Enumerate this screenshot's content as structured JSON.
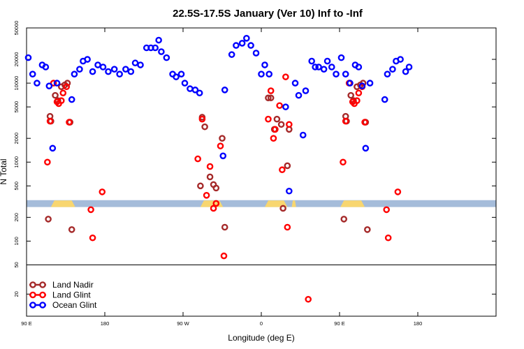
{
  "chart_data": {
    "type": "scatter",
    "title": "22.5S-17.5S January (Ver 10)   Inf to -Inf",
    "xlabel": "Longitude (deg E)",
    "ylabel": "N Total",
    "y_scale": "log",
    "x_range": [
      90,
      630
    ],
    "y_range": [
      10,
      50000
    ],
    "split_value": 50,
    "x_ticks": [
      {
        "value": 90,
        "label": "90 E"
      },
      {
        "value": 180,
        "label": "180"
      },
      {
        "value": 270,
        "label": "90 W"
      },
      {
        "value": 360,
        "label": "0"
      },
      {
        "value": 450,
        "label": "90 E"
      },
      {
        "value": 540,
        "label": "180"
      }
    ],
    "y_ticks": [
      {
        "value": 50000,
        "label": "50000"
      },
      {
        "value": 20000,
        "label": "20000"
      },
      {
        "value": 10000,
        "label": "10000"
      },
      {
        "value": 5000,
        "label": "5000"
      },
      {
        "value": 2000,
        "label": "2000"
      },
      {
        "value": 1000,
        "label": "1000"
      },
      {
        "value": 500,
        "label": "500"
      },
      {
        "value": 200,
        "label": "200"
      },
      {
        "value": 100,
        "label": "100"
      },
      {
        "value": 50,
        "label": "50"
      },
      {
        "value": 20,
        "label": "20"
      }
    ],
    "land_mask": {
      "y_range": [
        270,
        330
      ],
      "ocean_color": "#a5bcda",
      "land_color": "#f8d670",
      "land_segments": [
        [
          118,
          146
        ],
        [
          290,
          316
        ],
        [
          364,
          390
        ],
        [
          395,
          400
        ],
        [
          451,
          479
        ]
      ]
    },
    "series": [
      {
        "name": "Land Nadir",
        "color": "#a52a2a",
        "points": [
          [
            115,
            190
          ],
          [
            117,
            3800
          ],
          [
            118,
            3300
          ],
          [
            123,
            7000
          ],
          [
            126,
            6000
          ],
          [
            130,
            9000
          ],
          [
            134,
            9500
          ],
          [
            137,
            10000
          ],
          [
            140,
            3200
          ],
          [
            142,
            140
          ],
          [
            290,
            500
          ],
          [
            292,
            3700
          ],
          [
            295,
            2800
          ],
          [
            301,
            650
          ],
          [
            305,
            520
          ],
          [
            308,
            470
          ],
          [
            315,
            2000
          ],
          [
            318,
            150
          ],
          [
            368,
            6500
          ],
          [
            371,
            6500
          ],
          [
            375,
            2600
          ],
          [
            378,
            3500
          ],
          [
            383,
            3000
          ],
          [
            385,
            260
          ],
          [
            390,
            900
          ],
          [
            392,
            2600
          ],
          [
            455,
            190
          ],
          [
            457,
            3800
          ],
          [
            458,
            3300
          ],
          [
            463,
            7000
          ],
          [
            466,
            6000
          ],
          [
            470,
            9000
          ],
          [
            474,
            9500
          ],
          [
            477,
            10000
          ],
          [
            480,
            3200
          ],
          [
            482,
            140
          ]
        ]
      },
      {
        "name": "Land Glint",
        "color": "#ff0000",
        "points": [
          [
            114,
            1000
          ],
          [
            117,
            3300
          ],
          [
            121,
            10000
          ],
          [
            125,
            5800
          ],
          [
            127,
            5500
          ],
          [
            130,
            6000
          ],
          [
            132,
            7500
          ],
          [
            136,
            9000
          ],
          [
            139,
            3200
          ],
          [
            164,
            250
          ],
          [
            166,
            110
          ],
          [
            177,
            420
          ],
          [
            287,
            1100
          ],
          [
            292,
            3500
          ],
          [
            297,
            380
          ],
          [
            301,
            880
          ],
          [
            305,
            260
          ],
          [
            308,
            300
          ],
          [
            313,
            1600
          ],
          [
            317,
            65
          ],
          [
            368,
            3500
          ],
          [
            371,
            8000
          ],
          [
            374,
            2000
          ],
          [
            376,
            2600
          ],
          [
            381,
            5200
          ],
          [
            384,
            800
          ],
          [
            388,
            12000
          ],
          [
            390,
            150
          ],
          [
            392,
            3000
          ],
          [
            414,
            17
          ],
          [
            454,
            1000
          ],
          [
            457,
            3300
          ],
          [
            461,
            10000
          ],
          [
            465,
            5800
          ],
          [
            467,
            5500
          ],
          [
            470,
            6000
          ],
          [
            472,
            7500
          ],
          [
            476,
            9000
          ],
          [
            479,
            3200
          ],
          [
            504,
            250
          ],
          [
            506,
            110
          ],
          [
            517,
            420
          ]
        ]
      },
      {
        "name": "Ocean Glint",
        "color": "#0000ff",
        "points": [
          [
            92,
            21000
          ],
          [
            97,
            13000
          ],
          [
            102,
            10000
          ],
          [
            108,
            17000
          ],
          [
            112,
            16000
          ],
          [
            116,
            9200
          ],
          [
            120,
            1500
          ],
          [
            125,
            10000
          ],
          [
            142,
            6200
          ],
          [
            145,
            13000
          ],
          [
            151,
            15000
          ],
          [
            155,
            19000
          ],
          [
            160,
            20000
          ],
          [
            166,
            14000
          ],
          [
            172,
            17000
          ],
          [
            178,
            16000
          ],
          [
            184,
            14000
          ],
          [
            191,
            15000
          ],
          [
            197,
            13000
          ],
          [
            204,
            15000
          ],
          [
            210,
            14000
          ],
          [
            215,
            18000
          ],
          [
            221,
            17000
          ],
          [
            228,
            28000
          ],
          [
            233,
            28000
          ],
          [
            238,
            28000
          ],
          [
            242,
            35000
          ],
          [
            245,
            25000
          ],
          [
            251,
            21000
          ],
          [
            258,
            13000
          ],
          [
            262,
            12000
          ],
          [
            268,
            13000
          ],
          [
            272,
            10000
          ],
          [
            278,
            8500
          ],
          [
            284,
            8200
          ],
          [
            289,
            7500
          ],
          [
            316,
            1200
          ],
          [
            318,
            8200
          ],
          [
            326,
            23000
          ],
          [
            331,
            30000
          ],
          [
            338,
            32000
          ],
          [
            343,
            37000
          ],
          [
            348,
            30000
          ],
          [
            354,
            24000
          ],
          [
            360,
            13000
          ],
          [
            364,
            17000
          ],
          [
            369,
            13000
          ],
          [
            388,
            5000
          ],
          [
            392,
            430
          ],
          [
            399,
            10000
          ],
          [
            403,
            7000
          ],
          [
            408,
            2200
          ],
          [
            411,
            8000
          ],
          [
            418,
            19000
          ],
          [
            422,
            16000
          ],
          [
            426,
            16000
          ],
          [
            432,
            15000
          ],
          [
            436,
            19000
          ],
          [
            441,
            16000
          ],
          [
            446,
            13000
          ],
          [
            452,
            21000
          ],
          [
            457,
            13000
          ],
          [
            462,
            10000
          ],
          [
            468,
            17000
          ],
          [
            472,
            16000
          ],
          [
            476,
            9200
          ],
          [
            480,
            1500
          ],
          [
            485,
            10000
          ],
          [
            502,
            6200
          ],
          [
            505,
            13000
          ],
          [
            511,
            15000
          ],
          [
            515,
            19000
          ],
          [
            520,
            20000
          ],
          [
            526,
            14000
          ],
          [
            530,
            16000
          ]
        ]
      }
    ]
  }
}
